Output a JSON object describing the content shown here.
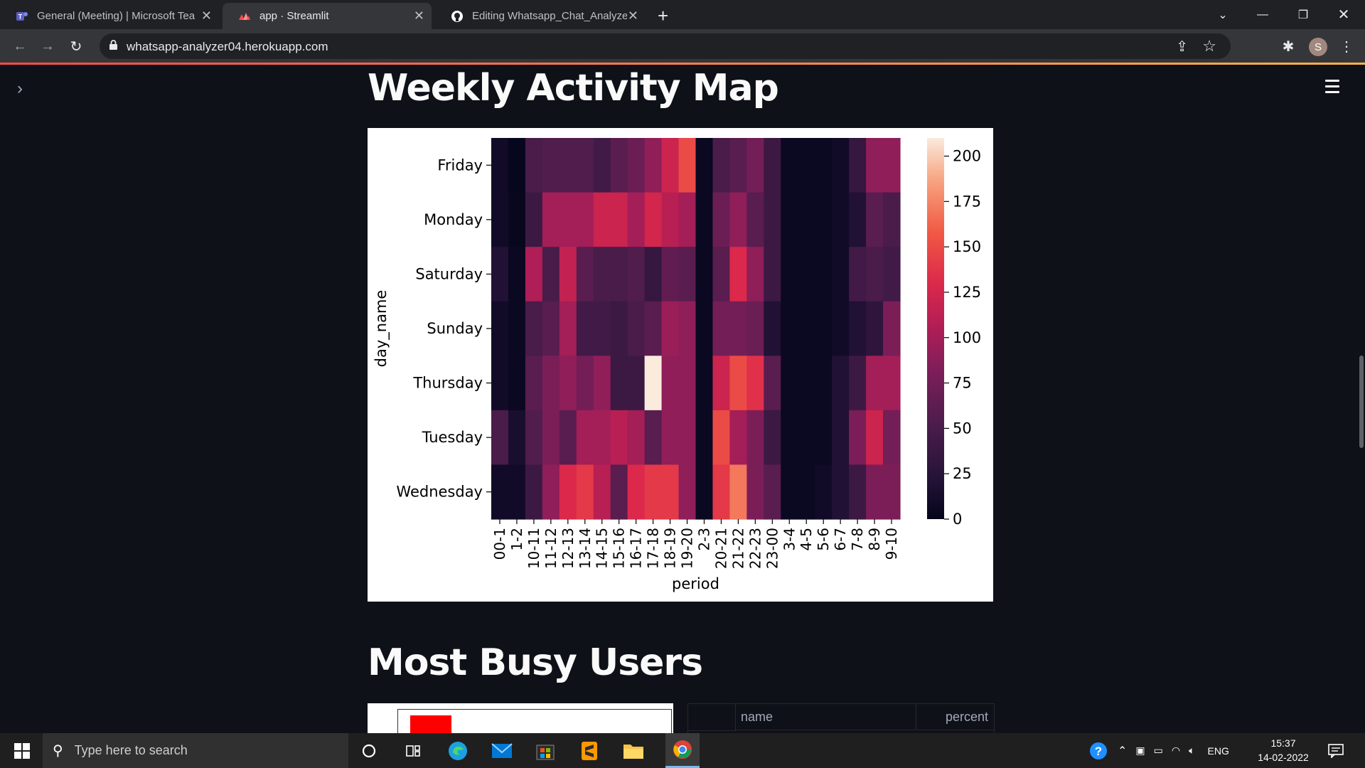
{
  "browser": {
    "tabs": [
      {
        "title": "General (Meeting) | Microsoft Teams",
        "icon": "teams-icon"
      },
      {
        "title": "app · Streamlit",
        "icon": "streamlit-icon",
        "active": true
      },
      {
        "title": "Editing Whatsapp_Chat_Analyzer",
        "icon": "github-icon"
      }
    ],
    "url": "whatsapp-analyzer04.herokuapp.com",
    "profile_initial": "S"
  },
  "page": {
    "section1_title": "Weekly Activity Map",
    "section2_title": "Most Busy Users",
    "table_headers": [
      "name",
      "percent"
    ]
  },
  "chart_data": {
    "type": "heatmap",
    "xlabel": "period",
    "ylabel": "day_name",
    "x": [
      "00-1",
      "1-2",
      "10-11",
      "11-12",
      "12-13",
      "13-14",
      "14-15",
      "15-16",
      "16-17",
      "17-18",
      "18-19",
      "19-20",
      "2-3",
      "20-21",
      "21-22",
      "22-23",
      "23-00",
      "3-4",
      "4-5",
      "5-6",
      "6-7",
      "7-8",
      "8-9",
      "9-10"
    ],
    "y": [
      "Friday",
      "Monday",
      "Saturday",
      "Sunday",
      "Thursday",
      "Tuesday",
      "Wednesday"
    ],
    "values": [
      [
        10,
        2,
        50,
        55,
        55,
        55,
        45,
        60,
        70,
        90,
        120,
        150,
        5,
        50,
        60,
        75,
        40,
        5,
        5,
        5,
        10,
        35,
        90,
        90
      ],
      [
        10,
        3,
        40,
        100,
        100,
        100,
        120,
        120,
        100,
        125,
        110,
        100,
        5,
        70,
        90,
        60,
        40,
        5,
        5,
        5,
        10,
        20,
        60,
        50
      ],
      [
        20,
        5,
        105,
        50,
        115,
        60,
        50,
        50,
        55,
        35,
        65,
        60,
        5,
        60,
        130,
        90,
        40,
        5,
        5,
        5,
        10,
        45,
        50,
        45
      ],
      [
        10,
        5,
        50,
        60,
        100,
        45,
        45,
        40,
        50,
        60,
        95,
        90,
        5,
        75,
        75,
        70,
        20,
        5,
        5,
        5,
        10,
        20,
        30,
        80
      ],
      [
        10,
        5,
        60,
        80,
        90,
        75,
        90,
        40,
        40,
        210,
        90,
        90,
        5,
        120,
        150,
        135,
        60,
        5,
        5,
        5,
        20,
        40,
        100,
        100
      ],
      [
        50,
        15,
        55,
        80,
        60,
        100,
        100,
        110,
        100,
        60,
        90,
        90,
        5,
        150,
        100,
        80,
        40,
        5,
        5,
        5,
        20,
        80,
        120,
        75
      ],
      [
        10,
        10,
        40,
        90,
        130,
        140,
        110,
        60,
        130,
        140,
        140,
        90,
        5,
        140,
        170,
        80,
        60,
        5,
        5,
        10,
        20,
        40,
        80,
        80
      ]
    ],
    "colorbar_ticks": [
      0,
      25,
      50,
      75,
      100,
      125,
      150,
      175,
      200
    ],
    "vmin": 0,
    "vmax": 210
  },
  "taskbar": {
    "search_placeholder": "Type here to search",
    "language": "ENG",
    "time": "15:37",
    "date": "14-02-2022"
  }
}
